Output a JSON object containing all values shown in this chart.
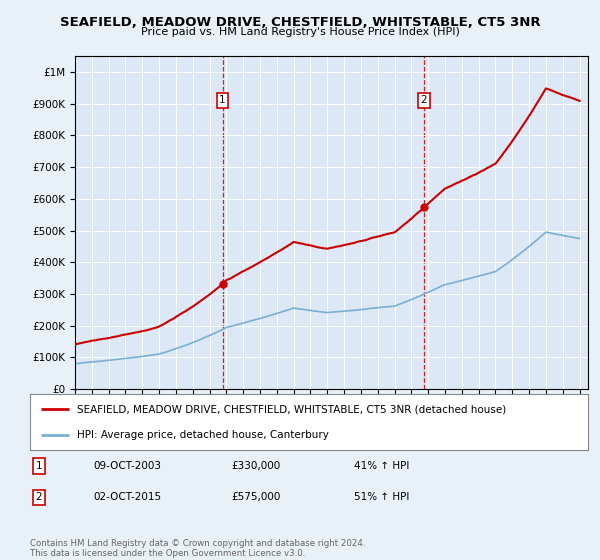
{
  "title": "SEAFIELD, MEADOW DRIVE, CHESTFIELD, WHITSTABLE, CT5 3NR",
  "subtitle": "Price paid vs. HM Land Registry's House Price Index (HPI)",
  "bg_color": "#e8f0f8",
  "plot_bg_color": "#dce8f5",
  "red_color": "#cc0000",
  "blue_color": "#7aafd4",
  "purchase1_year": 2003.77,
  "purchase1_price": 330000,
  "purchase1_label": "1",
  "purchase2_year": 2015.75,
  "purchase2_price": 575000,
  "purchase2_label": "2",
  "ylim_min": 0,
  "ylim_max": 1050000,
  "yticks": [
    0,
    100000,
    200000,
    300000,
    400000,
    500000,
    600000,
    700000,
    800000,
    900000,
    1000000
  ],
  "legend_label_red": "SEAFIELD, MEADOW DRIVE, CHESTFIELD, WHITSTABLE, CT5 3NR (detached house)",
  "legend_label_blue": "HPI: Average price, detached house, Canterbury",
  "annotation1_date": "09-OCT-2003",
  "annotation1_price": "£330,000",
  "annotation1_hpi": "41% ↑ HPI",
  "annotation2_date": "02-OCT-2015",
  "annotation2_price": "£575,000",
  "annotation2_hpi": "51% ↑ HPI",
  "footer": "Contains HM Land Registry data © Crown copyright and database right 2024.\nThis data is licensed under the Open Government Licence v3.0."
}
